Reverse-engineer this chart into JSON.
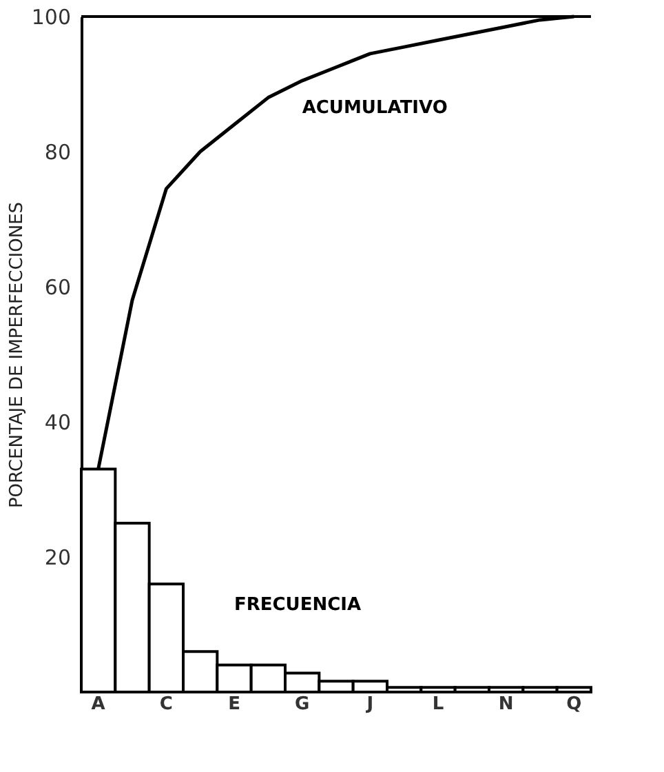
{
  "chart_data": {
    "type": "bar",
    "ylabel": "PORCENTAJE DE IMPERFECCIONES",
    "categories": [
      "A",
      null,
      "C",
      null,
      "E",
      null,
      "G",
      null,
      "J",
      null,
      "L",
      null,
      "N",
      null,
      "Q"
    ],
    "series": [
      {
        "name": "FRECUENCIA",
        "color": "#ffffff",
        "values": [
          33,
          25,
          16,
          6,
          4,
          4,
          2.8,
          1.6,
          1.6,
          0.7,
          0.7,
          0.7,
          0.7,
          0.7,
          0.7
        ]
      },
      {
        "name": "ACUMULATIVO",
        "type": "line",
        "color": "#000000",
        "values": [
          33,
          58,
          74.5,
          80,
          84,
          88,
          90.5,
          92.5,
          94.5,
          95.5,
          96.5,
          97.5,
          98.5,
          99.5,
          100
        ]
      }
    ],
    "ylim": [
      0,
      100
    ],
    "yticks": [
      20,
      40,
      60,
      80,
      100
    ],
    "ref_lines": [
      {
        "axis": "y",
        "value": 100,
        "label": null
      }
    ],
    "grid": false,
    "marker": "none",
    "line_style": "solid"
  }
}
